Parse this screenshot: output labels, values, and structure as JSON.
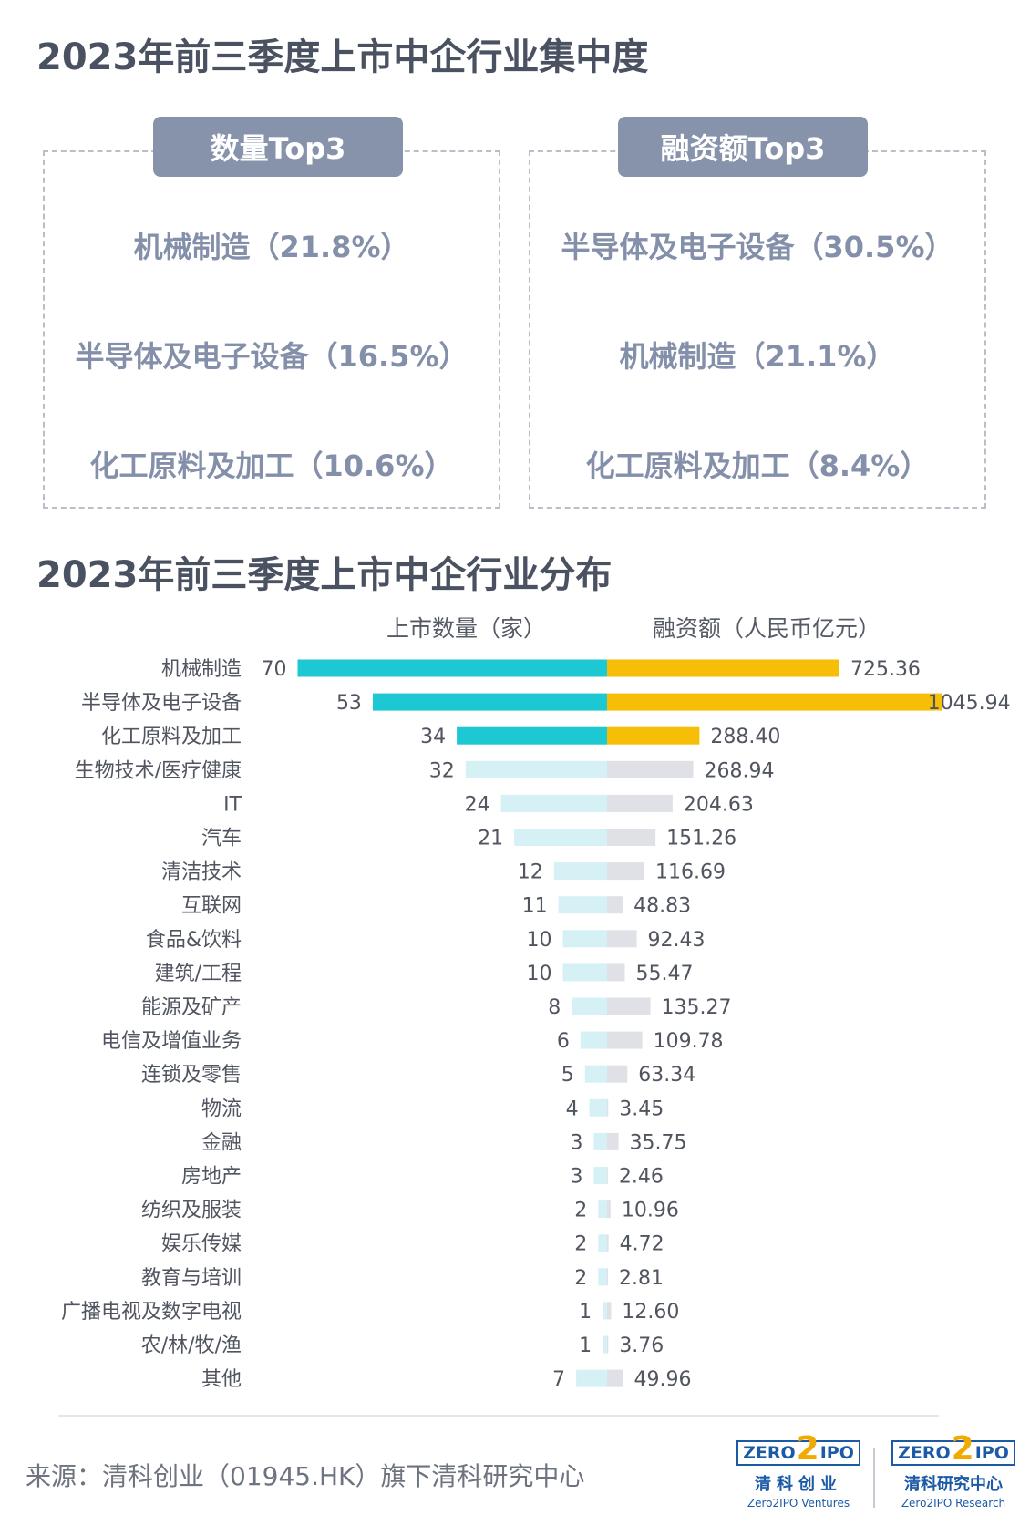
{
  "section1": {
    "title": "2023年前三季度上市中企行业集中度",
    "count_tab": "数量Top3",
    "count_items": [
      "机械制造（21.8%）",
      "半导体及电子设备（16.5%）",
      "化工原料及加工（10.6%）"
    ],
    "funding_tab": "融资额Top3",
    "funding_items": [
      "半导体及电子设备（30.5%）",
      "机械制造（21.1%）",
      "化工原料及加工（8.4%）"
    ]
  },
  "section2": {
    "title": "2023年前三季度上市中企行业分布",
    "count_header": "上市数量（家）",
    "funding_header": "融资额（人民币亿元）"
  },
  "chart_data": {
    "type": "bar",
    "orientation": "horizontal-diverging",
    "title": "2023年前三季度上市中企行业分布",
    "categories": [
      "机械制造",
      "半导体及电子设备",
      "化工原料及加工",
      "生物技术/医疗健康",
      "IT",
      "汽车",
      "清洁技术",
      "互联网",
      "食品&饮料",
      "建筑/工程",
      "能源及矿产",
      "电信及增值业务",
      "连锁及零售",
      "物流",
      "金融",
      "房地产",
      "纺织及服装",
      "娱乐传媒",
      "教育与培训",
      "广播电视及数字电视",
      "农/林/牧/渔",
      "其他"
    ],
    "series": [
      {
        "name": "上市数量（家）",
        "direction": "left",
        "values": [
          70,
          53,
          34,
          32,
          24,
          21,
          12,
          11,
          10,
          10,
          8,
          6,
          5,
          4,
          3,
          3,
          2,
          2,
          2,
          1,
          1,
          7
        ]
      },
      {
        "name": "融资额（人民币亿元）",
        "direction": "right",
        "values": [
          725.36,
          1045.94,
          288.4,
          268.94,
          204.63,
          151.26,
          116.69,
          48.83,
          92.43,
          55.47,
          135.27,
          109.78,
          63.34,
          3.45,
          35.75,
          2.46,
          10.96,
          4.72,
          2.81,
          12.6,
          3.76,
          49.96
        ]
      }
    ],
    "value_labels": {
      "count": [
        "70",
        "53",
        "34",
        "32",
        "24",
        "21",
        "12",
        "11",
        "10",
        "10",
        "8",
        "6",
        "5",
        "4",
        "3",
        "3",
        "2",
        "2",
        "2",
        "1",
        "1",
        "7"
      ],
      "funding": [
        "725.36",
        "1045.94",
        "288.40",
        "268.94",
        "204.63",
        "151.26",
        "116.69",
        "48.83",
        "92.43",
        "55.47",
        "135.27",
        "109.78",
        "63.34",
        "3.45",
        "35.75",
        "2.46",
        "10.96",
        "4.72",
        "2.81",
        "12.60",
        "3.76",
        "49.96"
      ]
    },
    "highlight_top": 3,
    "colors": {
      "count_highlight": "#1ec8d3",
      "count_muted": "#d6f1f5",
      "funding_highlight": "#f7be08",
      "funding_muted": "#dfe1e7"
    }
  },
  "footer": {
    "source": "来源：清科创业（01945.HK）旗下清科研究中心",
    "logo_left": {
      "mark_a": "ZERO",
      "mark_two": "2",
      "mark_b": "IPO",
      "cn": "清科创业",
      "en": "Zero2IPO Ventures"
    },
    "logo_right": {
      "mark_a": "ZERO",
      "mark_two": "2",
      "mark_b": "IPO",
      "cn": "清科研究中心",
      "en": "Zero2IPO Research"
    }
  }
}
